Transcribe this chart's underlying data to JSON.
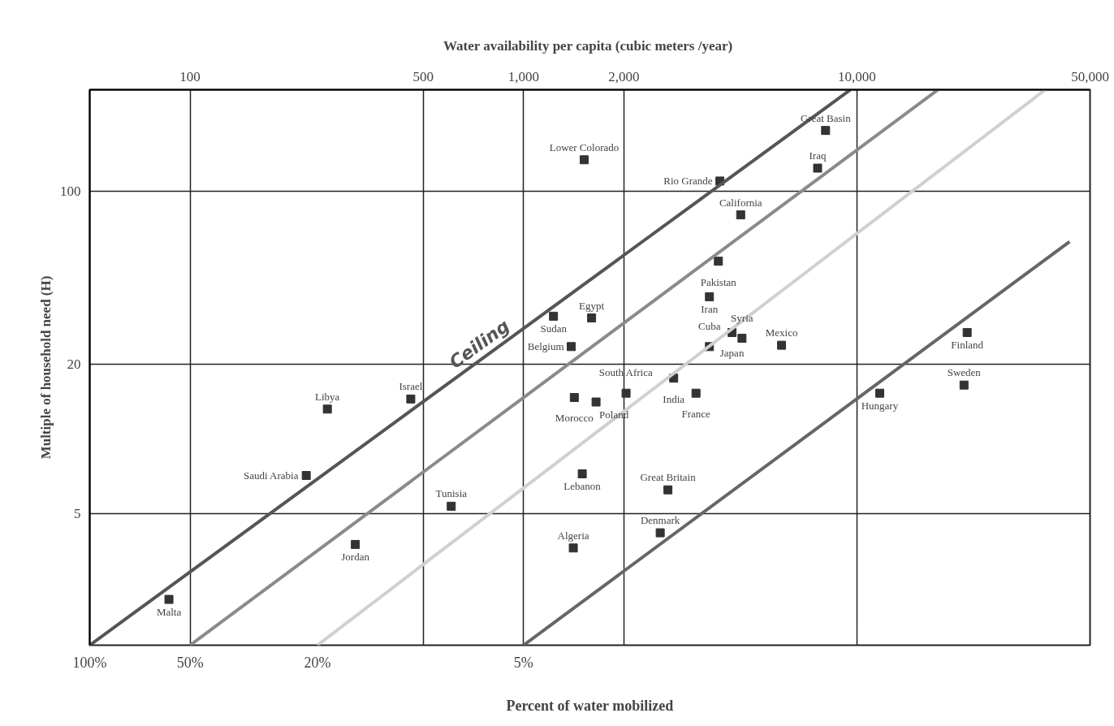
{
  "chart_data": {
    "type": "scatter",
    "xlabel": "Water  availability per capita (cubic meters /year)",
    "ylabel": "Multiple of household need (H)",
    "log": "xy",
    "xlim": [
      50,
      50000
    ],
    "ylim": [
      1.47,
      257
    ],
    "xticks": [
      100,
      500,
      {
        "value": 1000,
        "label": "1,000"
      },
      {
        "value": 2000,
        "label": "2,000"
      },
      {
        "value": 10000,
        "label": "10,000"
      },
      {
        "value": 50000,
        "label": "50,000"
      }
    ],
    "yticks": [
      100,
      20,
      5
    ],
    "grid": true,
    "marker": "square",
    "series": [
      {
        "color": "#333333",
        "x": [
          8050,
          7620,
          1520,
          3880,
          4480,
          3840,
          3610,
          1230,
          1600,
          1390,
          4220,
          4520,
          3610,
          5940,
          21400,
          2820,
          20940,
          11700,
          3290,
          2030,
          1420,
          1650,
          459,
          258,
          223,
          1500,
          2710,
          607,
          2570,
          1410,
          313,
          86.4
        ],
        "values": [
          176,
          124,
          134,
          110,
          80.3,
          52.2,
          37.5,
          31.3,
          30.8,
          23.6,
          26.9,
          25.5,
          23.6,
          23.9,
          26.9,
          17.6,
          16.5,
          15.3,
          15.3,
          15.3,
          14.7,
          14.1,
          14.5,
          13.2,
          7.12,
          7.23,
          6.23,
          5.35,
          4.18,
          3.63,
          3.75,
          2.25
        ]
      },
      {
        "type": "line",
        "name": "Ceiling",
        "marker": "none",
        "color": "#555555",
        "x": [
          50,
          9560
        ],
        "values": [
          1.47,
          257
        ]
      },
      {
        "type": "line",
        "marker": "none",
        "color": "#8a8a8a",
        "x": [
          100,
          17500
        ],
        "values": [
          1.47,
          257
        ]
      },
      {
        "type": "line",
        "marker": "none",
        "color": "#d0d0d0",
        "x": [
          241,
          36700
        ],
        "values": [
          1.47,
          257
        ]
      },
      {
        "type": "line",
        "marker": "none",
        "color": "#666666",
        "x": [
          1000,
          43400
        ],
        "values": [
          1.47,
          62.6
        ]
      }
    ],
    "annotations": [
      {
        "text": "Great Basin",
        "x": 8050,
        "y": 176
      },
      {
        "text": "Iraq",
        "x": 7620,
        "y": 124
      },
      {
        "text": "Lower Colorado",
        "x": 1520,
        "y": 134
      },
      {
        "text": "Rio Grande",
        "x": 3880,
        "y": 110
      },
      {
        "text": "California",
        "x": 4480,
        "y": 80.3
      },
      {
        "text": "Pakistan",
        "x": 3840,
        "y": 52.2
      },
      {
        "text": "Iran",
        "x": 3610,
        "y": 37.5
      },
      {
        "text": "Sudan",
        "x": 1230,
        "y": 31.3
      },
      {
        "text": "Egypt",
        "x": 1600,
        "y": 30.8
      },
      {
        "text": "Belgium",
        "x": 1390,
        "y": 23.6
      },
      {
        "text": "Japan",
        "x": 4220,
        "y": 26.9
      },
      {
        "text": "Syria",
        "x": 4520,
        "y": 25.5
      },
      {
        "text": "Cuba",
        "x": 3610,
        "y": 23.6
      },
      {
        "text": "Mexico",
        "x": 5940,
        "y": 23.9
      },
      {
        "text": "Finland",
        "x": 21400,
        "y": 26.9
      },
      {
        "text": "India",
        "x": 2820,
        "y": 17.6
      },
      {
        "text": "Sweden",
        "x": 20940,
        "y": 16.5
      },
      {
        "text": "Hungary",
        "x": 11700,
        "y": 15.3
      },
      {
        "text": "France",
        "x": 3290,
        "y": 15.3
      },
      {
        "text": "South Africa",
        "x": 2030,
        "y": 15.3
      },
      {
        "text": "Morocco",
        "x": 1420,
        "y": 14.7
      },
      {
        "text": "Poland",
        "x": 1650,
        "y": 14.1
      },
      {
        "text": "Israel",
        "x": 459,
        "y": 14.5
      },
      {
        "text": "Libya",
        "x": 258,
        "y": 13.2
      },
      {
        "text": "Saudi Arabia",
        "x": 223,
        "y": 7.12
      },
      {
        "text": "Lebanon",
        "x": 1500,
        "y": 7.23
      },
      {
        "text": "Great Britain",
        "x": 2710,
        "y": 6.23
      },
      {
        "text": "Tunisia",
        "x": 607,
        "y": 5.35
      },
      {
        "text": "Denmark",
        "x": 2570,
        "y": 4.18
      },
      {
        "text": "Algeria",
        "x": 1410,
        "y": 3.63
      },
      {
        "text": "Jordan",
        "x": 313,
        "y": 3.75
      },
      {
        "text": "Malta",
        "x": 86.4,
        "y": 2.25
      },
      {
        "text": "100%",
        "x": 50,
        "y": 1.47
      },
      {
        "text": "50%",
        "x": 100,
        "y": 1.47
      },
      {
        "text": "20%",
        "x": 241,
        "y": 1.47
      },
      {
        "text": "5%",
        "x": 1000,
        "y": 1.47
      },
      "Percent of water mobilized"
    ]
  }
}
